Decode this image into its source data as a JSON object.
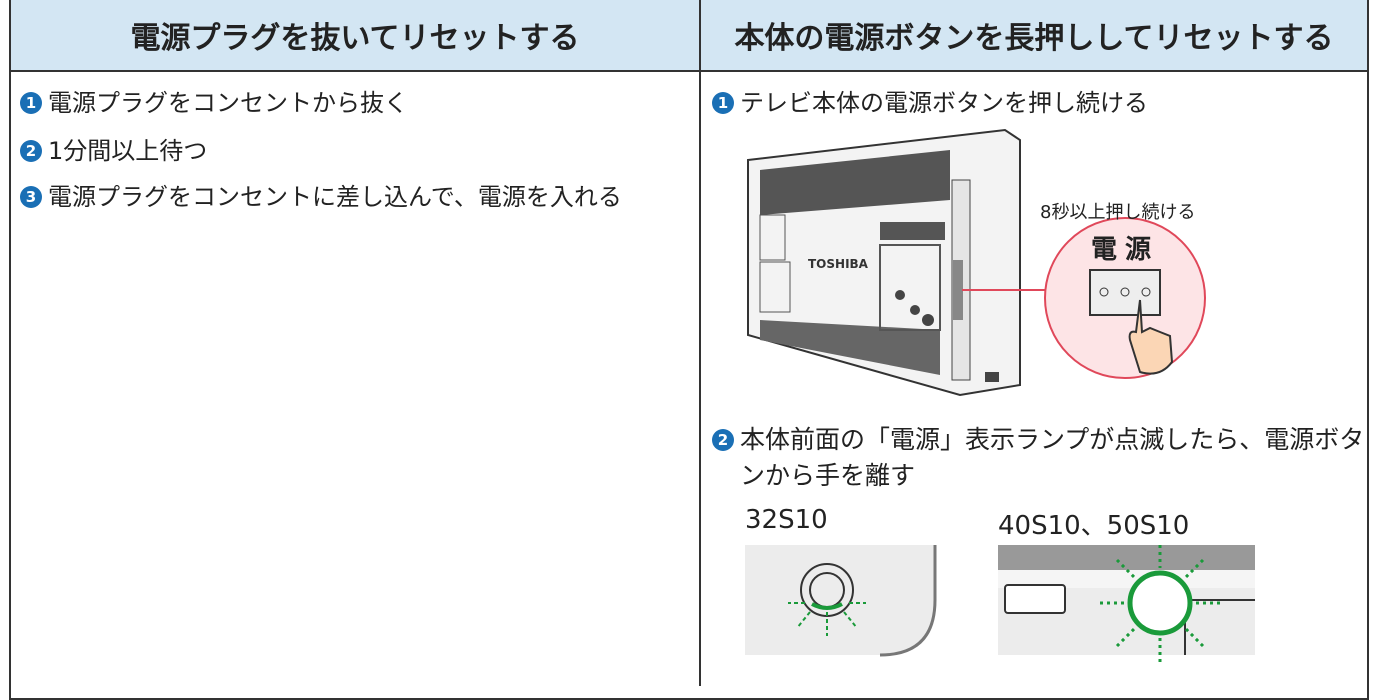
{
  "columns": [
    {
      "header": "電源プラグを抜いてリセットする",
      "steps": [
        {
          "number": "1",
          "text": "電源プラグをコンセントから抜く"
        },
        {
          "number": "2",
          "text": "1分間以上待つ"
        },
        {
          "number": "3",
          "text": "電源プラグをコンセントに差し込んで、電源を入れる"
        }
      ]
    },
    {
      "header": "本体の電源ボタンを長押ししてリセットする",
      "steps": [
        {
          "number": "1",
          "text": "テレビ本体の電源ボタンを押し続ける",
          "figure": {
            "brand": "TOSHIBA",
            "callout": "8秒以上押し続ける",
            "button_label": "電源"
          }
        },
        {
          "number": "2",
          "text": "本体前面の「電源」表示ランプが点滅したら、電源ボタンから手を離す",
          "figure_labels": [
            "32S10",
            "40S10、50S10"
          ]
        }
      ]
    }
  ]
}
